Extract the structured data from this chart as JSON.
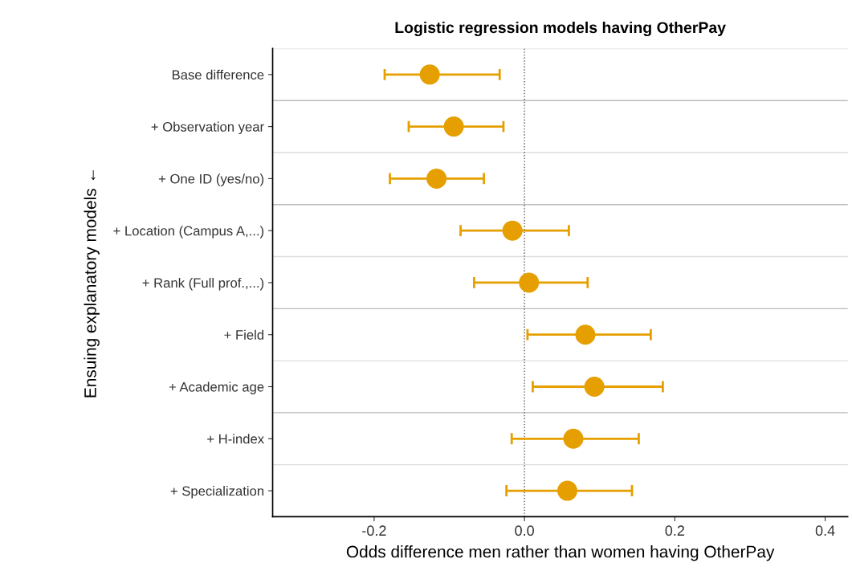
{
  "chart_data": {
    "type": "scatter",
    "orientation": "horizontal",
    "title": "Logistic regression models having OtherPay",
    "xlabel": "Odds difference men rather than women having OtherPay",
    "ylabel": "Ensuing explanatory models ←",
    "categories": [
      "Base difference",
      "+ Observation year",
      "+ One ID (yes/no)",
      "+ Location (Campus A,...)",
      "+ Rank (Full prof.,...)",
      "+ Field",
      "+ Academic age",
      "+ H-index",
      "+ Specialization"
    ],
    "series": [
      {
        "color": "#e69f00",
        "values": [
          -0.126,
          -0.094,
          -0.117,
          -0.016,
          0.006,
          0.081,
          0.093,
          0.065,
          0.057
        ],
        "errors": [
          [
            -0.186,
            -0.033
          ],
          [
            -0.154,
            -0.028
          ],
          [
            -0.179,
            -0.054
          ],
          [
            -0.085,
            0.059
          ],
          [
            -0.067,
            0.084
          ],
          [
            0.004,
            0.168
          ],
          [
            0.011,
            0.184
          ],
          [
            -0.017,
            0.152
          ],
          [
            -0.024,
            0.143
          ]
        ]
      }
    ],
    "xlim": [
      -0.335,
      0.43
    ],
    "xticks": [
      {
        "value": -0.2,
        "label": "-0.2"
      },
      {
        "value": 0.0,
        "label": "0.0"
      },
      {
        "value": 0.2,
        "label": "0.2"
      },
      {
        "value": 0.4,
        "label": "0.4"
      }
    ],
    "ref_lines": [
      {
        "axis": "x",
        "value": 0,
        "color": "#555555",
        "line_style": "dotted"
      }
    ],
    "grid": "y",
    "marker": "circle",
    "legend": false
  }
}
